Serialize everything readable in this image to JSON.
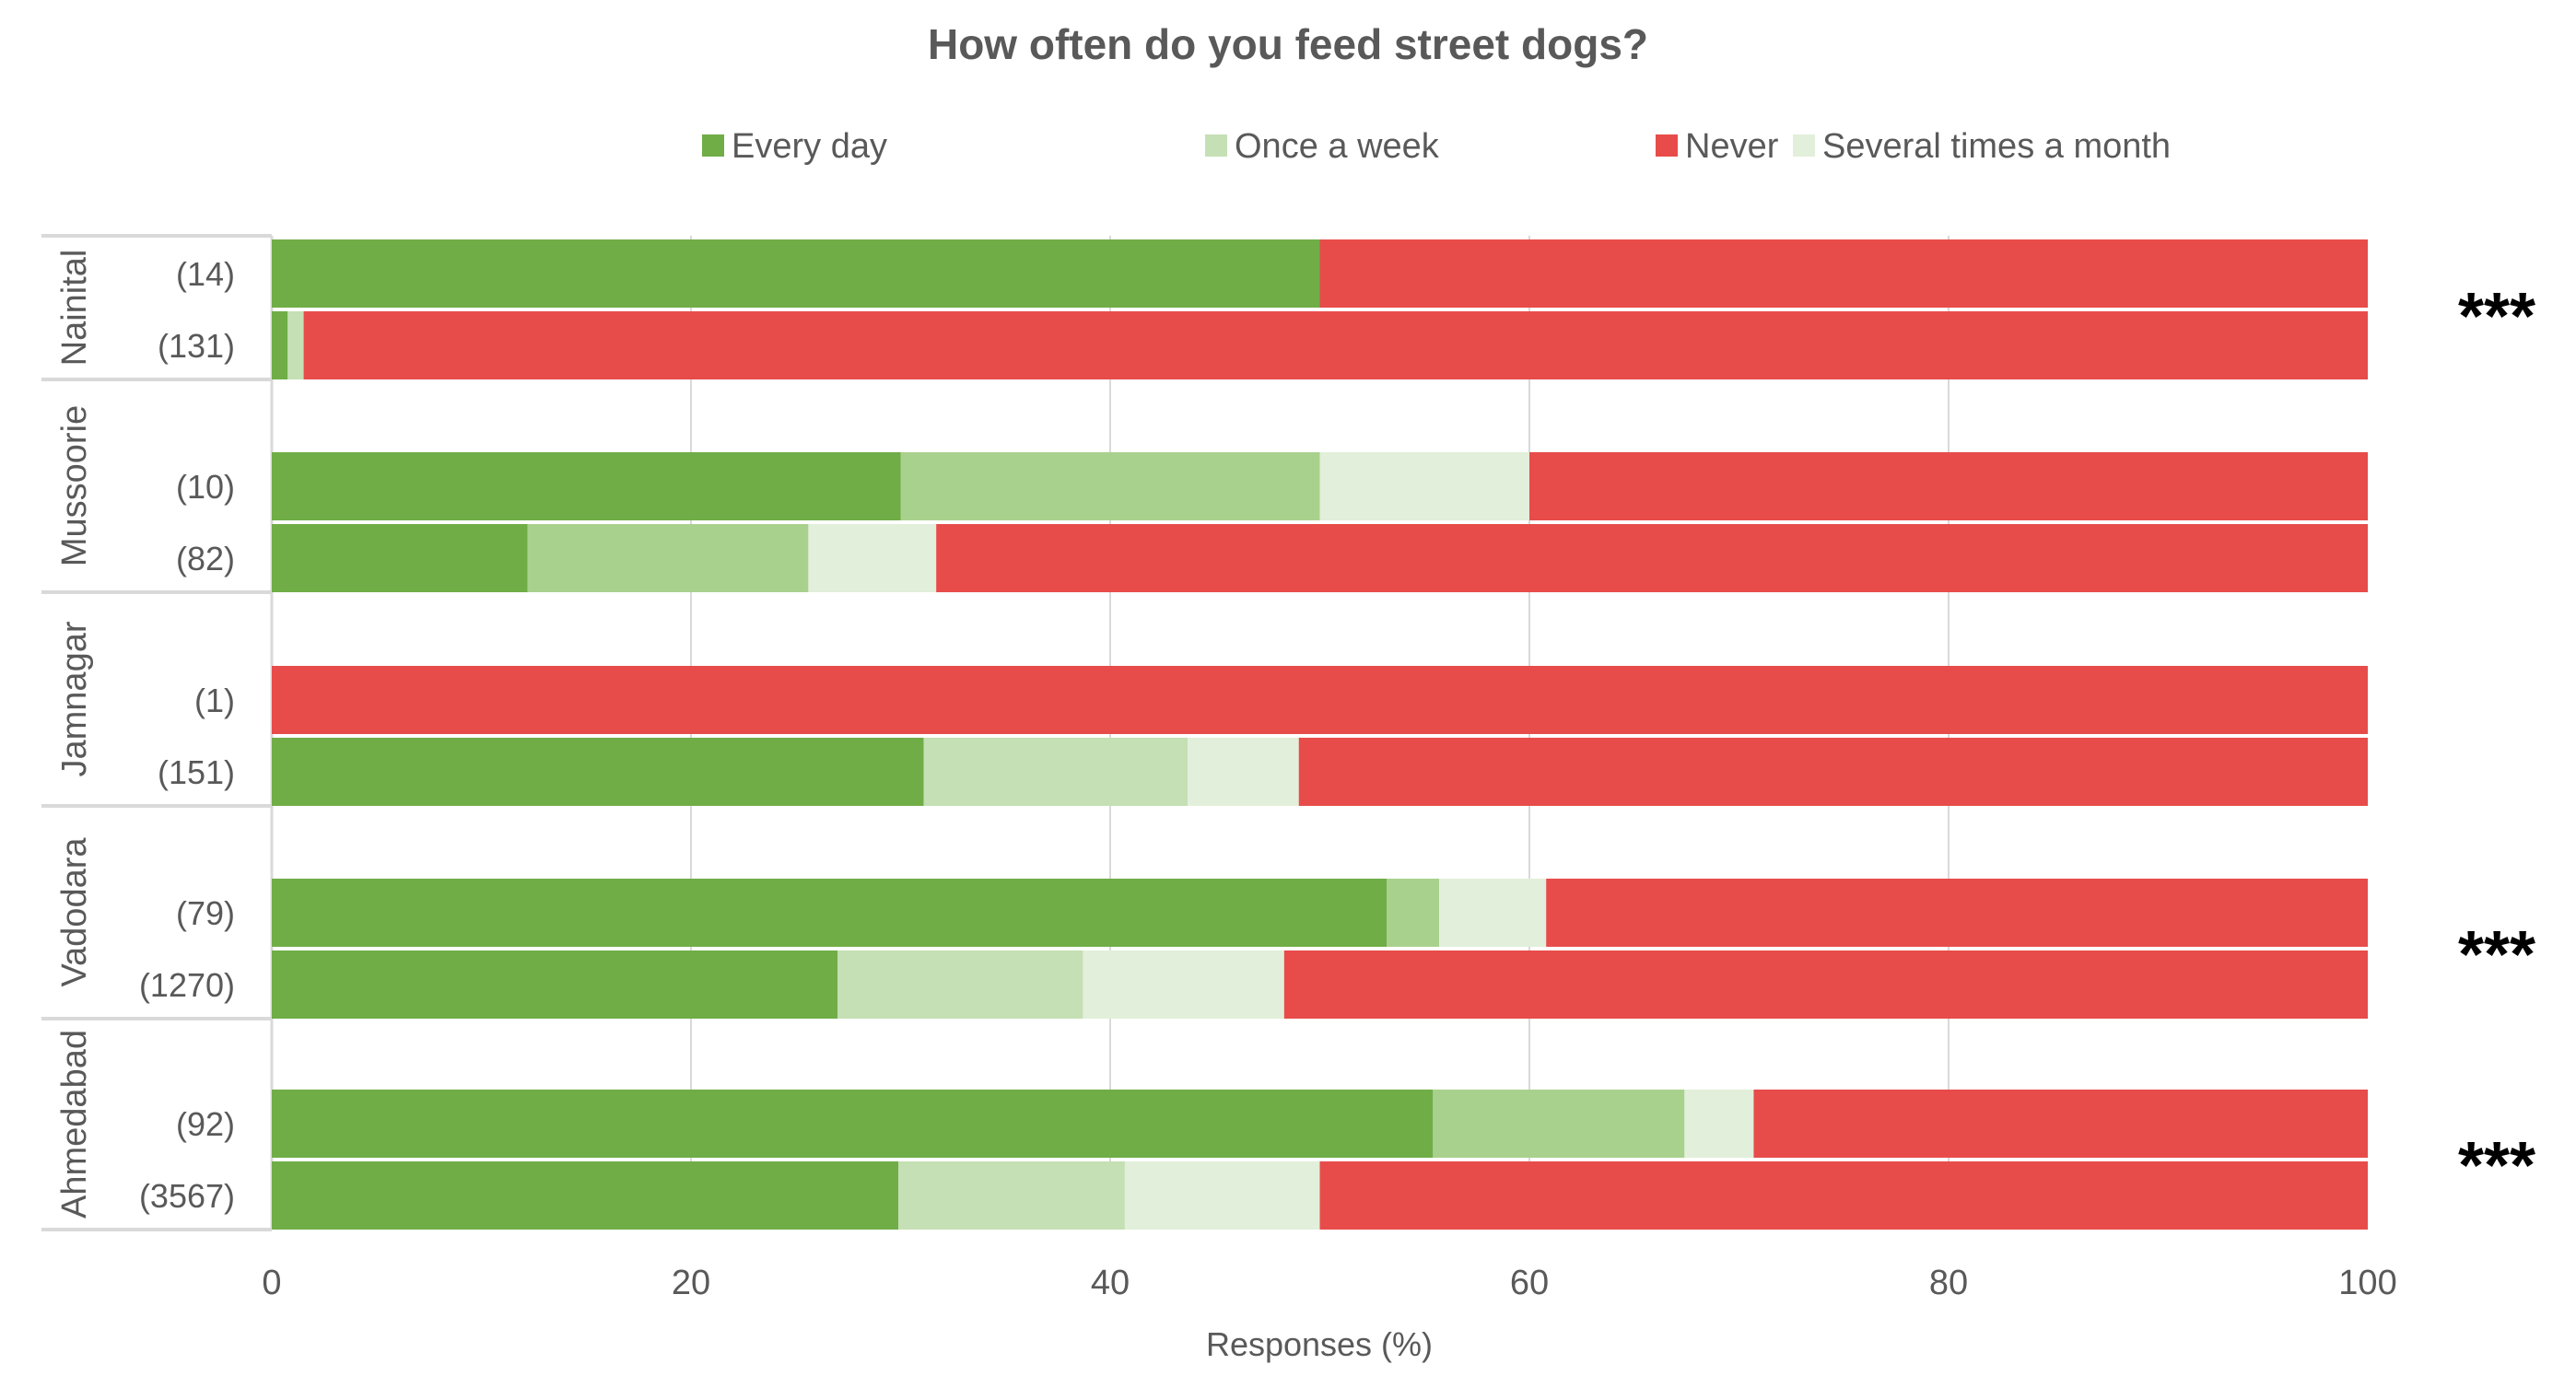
{
  "chart_data": {
    "type": "bar",
    "orientation": "horizontal",
    "stacked": true,
    "title": "How often do you feed street dogs?",
    "xlabel": "Responses (%)",
    "ylabel": "",
    "xlim": [
      0,
      100
    ],
    "xticks": [
      "0",
      "20",
      "40",
      "60",
      "80",
      "100"
    ],
    "grid": true,
    "legend_position": "top",
    "series": [
      {
        "name": "Every day",
        "color": "#70ad47"
      },
      {
        "name": "Once a week",
        "color": "#c5e0b4"
      },
      {
        "name": "Several times a month",
        "color": "#e2efda"
      },
      {
        "name": "Never",
        "color": "#e74c4a"
      }
    ],
    "alt_once_color": "#a9d18e",
    "groups": [
      {
        "city": "Nainital",
        "significance": "***",
        "rows": [
          {
            "label": "(14)",
            "values": [
              50,
              0,
              0,
              50
            ],
            "alt_once": false
          },
          {
            "label": "(131)",
            "values": [
              0.76,
              0.76,
              0,
              98.48
            ],
            "alt_once": false
          }
        ]
      },
      {
        "city": "Mussoorie",
        "significance": "",
        "rows": [
          {
            "label": "(10)",
            "values": [
              30,
              20,
              10,
              40
            ],
            "alt_once": true
          },
          {
            "label": "(82)",
            "values": [
              12.2,
              13.4,
              6.1,
              68.3
            ],
            "alt_once": true
          }
        ]
      },
      {
        "city": "Jamnagar",
        "significance": "",
        "rows": [
          {
            "label": "(1)",
            "values": [
              0,
              0,
              0,
              100
            ],
            "alt_once": false
          },
          {
            "label": "(151)",
            "values": [
              31.1,
              12.6,
              5.3,
              51.0
            ],
            "alt_once": false
          }
        ]
      },
      {
        "city": "Vadodara",
        "significance": "***",
        "rows": [
          {
            "label": "(79)",
            "values": [
              53.2,
              2.5,
              5.1,
              39.2
            ],
            "alt_once": true
          },
          {
            "label": "(1270)",
            "values": [
              27.0,
              11.7,
              9.6,
              51.7
            ],
            "alt_once": false
          }
        ]
      },
      {
        "city": "Ahmedabad",
        "significance": "***",
        "rows": [
          {
            "label": "(92)",
            "values": [
              55.4,
              12.0,
              3.3,
              29.3
            ],
            "alt_once": true
          },
          {
            "label": "(3567)",
            "values": [
              29.9,
              10.8,
              9.3,
              50.0
            ],
            "alt_once": false
          }
        ]
      }
    ]
  }
}
